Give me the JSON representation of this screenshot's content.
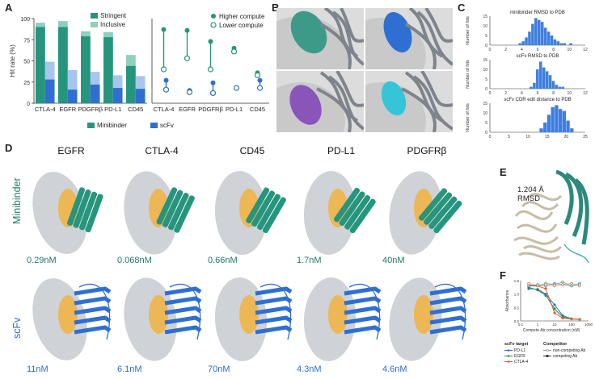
{
  "colors": {
    "minibinder": "#26957d",
    "minibinder_light": "#8fcfbe",
    "scfv": "#2f6fd1",
    "scfv_light": "#a7c6ee",
    "surface": "#cfd2d6",
    "interface": "#f0b447",
    "histogram": "#3d7ee0"
  },
  "panels": {
    "a": "A",
    "b": "B",
    "c": "C",
    "d": "D",
    "e": "E",
    "f": "F"
  },
  "panel_a": {
    "bar_chart": {
      "type": "bar",
      "ylabel": "Hit rate (%)",
      "ylim": [
        0,
        100
      ],
      "yticks": [
        0,
        25,
        50,
        75,
        100
      ],
      "categories": [
        "CTLA-4",
        "EGFR",
        "PDGFRβ",
        "PD-L1",
        "CD45"
      ],
      "series": [
        {
          "name": "Stringent",
          "binder": "Minibinder",
          "values": [
            90,
            90,
            79,
            78,
            44
          ]
        },
        {
          "name": "Inclusive",
          "binder": "Minibinder",
          "values": [
            95,
            97,
            85,
            84,
            57
          ]
        },
        {
          "name": "Stringent",
          "binder": "scFv",
          "values": [
            28,
            16,
            22,
            18,
            17
          ]
        },
        {
          "name": "Inclusive",
          "binder": "scFv",
          "values": [
            49,
            39,
            37,
            33,
            32
          ]
        }
      ],
      "legend": [
        "Stringent",
        "Inclusive"
      ]
    },
    "dot_chart": {
      "type": "scatter",
      "ylim": [
        0,
        100
      ],
      "categories": [
        "CTLA-4",
        "EGFR",
        "PDGFRβ",
        "PD-L1",
        "CD45"
      ],
      "series": [
        {
          "name": "Higher compute",
          "binder": "Minibinder",
          "values": [
            87,
            86,
            73,
            65,
            36
          ]
        },
        {
          "name": "Lower compute",
          "binder": "Minibinder",
          "values": [
            40,
            53,
            40,
            61,
            33
          ]
        },
        {
          "name": "Higher compute",
          "binder": "scFv",
          "values": [
            27,
            15,
            24,
            18,
            27
          ]
        },
        {
          "name": "Lower compute",
          "binder": "scFv",
          "values": [
            16,
            13,
            12,
            18,
            18
          ]
        }
      ],
      "legend": [
        "Higher compute",
        "Lower compute"
      ]
    },
    "bottom_legend": [
      "Minibinder",
      "scFv"
    ]
  },
  "panel_c": {
    "chart_data": [
      {
        "type": "bar",
        "title": "minibinder RMSD to PDB",
        "ylabel": "Number of hits",
        "xlim": [
          0,
          12
        ],
        "xticks": [
          0,
          2,
          4,
          6,
          8,
          10,
          12
        ],
        "ylim": [
          0,
          15
        ],
        "yticks": [
          0,
          5,
          10,
          15
        ],
        "bins_start": 3.6,
        "bin_width": 0.4,
        "values": [
          1,
          2,
          4,
          7,
          11,
          14,
          13,
          12,
          9,
          7,
          5,
          3,
          2,
          1,
          1,
          0,
          1
        ]
      },
      {
        "type": "bar",
        "title": "scFv RMSD to PDB",
        "ylabel": "Number of hits",
        "xlim": [
          0,
          12
        ],
        "xticks": [
          0,
          2,
          4,
          6,
          8,
          10,
          12
        ],
        "ylim": [
          0,
          15
        ],
        "yticks": [
          0,
          5,
          10,
          15
        ],
        "bins_start": 5.0,
        "bin_width": 0.4,
        "values": [
          1,
          3,
          10,
          14,
          11,
          9,
          7,
          4,
          2,
          1,
          1
        ]
      },
      {
        "type": "bar",
        "title": "scFv CDR edit distance to PDB",
        "ylabel": "Number of hits",
        "xlim": [
          0,
          25
        ],
        "xticks": [
          0,
          5,
          10,
          15,
          20,
          25
        ],
        "ylim": [
          0,
          15
        ],
        "yticks": [
          0,
          5,
          10,
          15
        ],
        "bins_start": 13,
        "bin_width": 1,
        "values": [
          2,
          5,
          9,
          13,
          14,
          12,
          11,
          6,
          2
        ]
      }
    ]
  },
  "panel_d": {
    "targets": [
      "EGFR",
      "CTLA-4",
      "CD45",
      "PD-L1",
      "PDGFRβ"
    ],
    "row_labels": [
      "Minibinder",
      "scFv"
    ],
    "minibinder_affinities": [
      "0.29nM",
      "0.068nM",
      "0.66nM",
      "1.7nM",
      "40nM"
    ],
    "scfv_affinities": [
      "11nM",
      "6.1nM",
      "70nM",
      "4.3nM",
      "4.6nM"
    ]
  },
  "panel_e": {
    "rmsd_value": "1.204 Å",
    "rmsd_label": "RMSD"
  },
  "panel_f": {
    "chart_data": {
      "type": "line",
      "ylabel": "Absorbance",
      "xlabel": "Compete Ab concentration (nM)",
      "xscale": "log",
      "xlim": [
        0.1,
        1000
      ],
      "xticks": [
        "0.1",
        "1",
        "10",
        "100",
        "1000"
      ],
      "ylim": [
        0,
        1.5
      ],
      "yticks": [
        "0.0",
        "0.5",
        "1.0",
        "1.5"
      ],
      "x": [
        0.3,
        1,
        3,
        10,
        30,
        100,
        300
      ],
      "series": [
        {
          "name": "PD-L1",
          "type": "competing",
          "color": "#2f6fd1",
          "values": [
            1.2,
            1.18,
            1.0,
            0.6,
            0.2,
            0.08,
            0.06
          ]
        },
        {
          "name": "EGFR",
          "type": "competing",
          "color": "#2a8f55",
          "values": [
            1.25,
            1.15,
            0.95,
            0.45,
            0.15,
            0.08,
            0.06
          ]
        },
        {
          "name": "CTLA-4",
          "type": "competing",
          "color": "#e0602a",
          "values": [
            1.3,
            1.3,
            1.2,
            0.3,
            0.1,
            0.07,
            0.06
          ]
        },
        {
          "name": "PD-L1",
          "type": "non-competing",
          "color": "#2f6fd1",
          "values": [
            1.3,
            1.35,
            1.3,
            1.4,
            1.35,
            1.3,
            1.4
          ]
        },
        {
          "name": "EGFR",
          "type": "non-competing",
          "color": "#2a8f55",
          "values": [
            1.35,
            1.3,
            1.4,
            1.35,
            1.45,
            1.3,
            1.35
          ]
        },
        {
          "name": "CTLA-4",
          "type": "non-competing",
          "color": "#e0602a",
          "values": [
            1.4,
            1.3,
            1.35,
            1.3,
            1.35,
            1.4,
            1.3
          ]
        }
      ],
      "legend": {
        "scfv_target_title": "scFv target",
        "scfv_targets": [
          "PD-L1",
          "EGFR",
          "CTLA-4"
        ],
        "competitor_title": "Competitor",
        "competitors": [
          "non-competing Ab",
          "competing Ab"
        ]
      }
    }
  }
}
